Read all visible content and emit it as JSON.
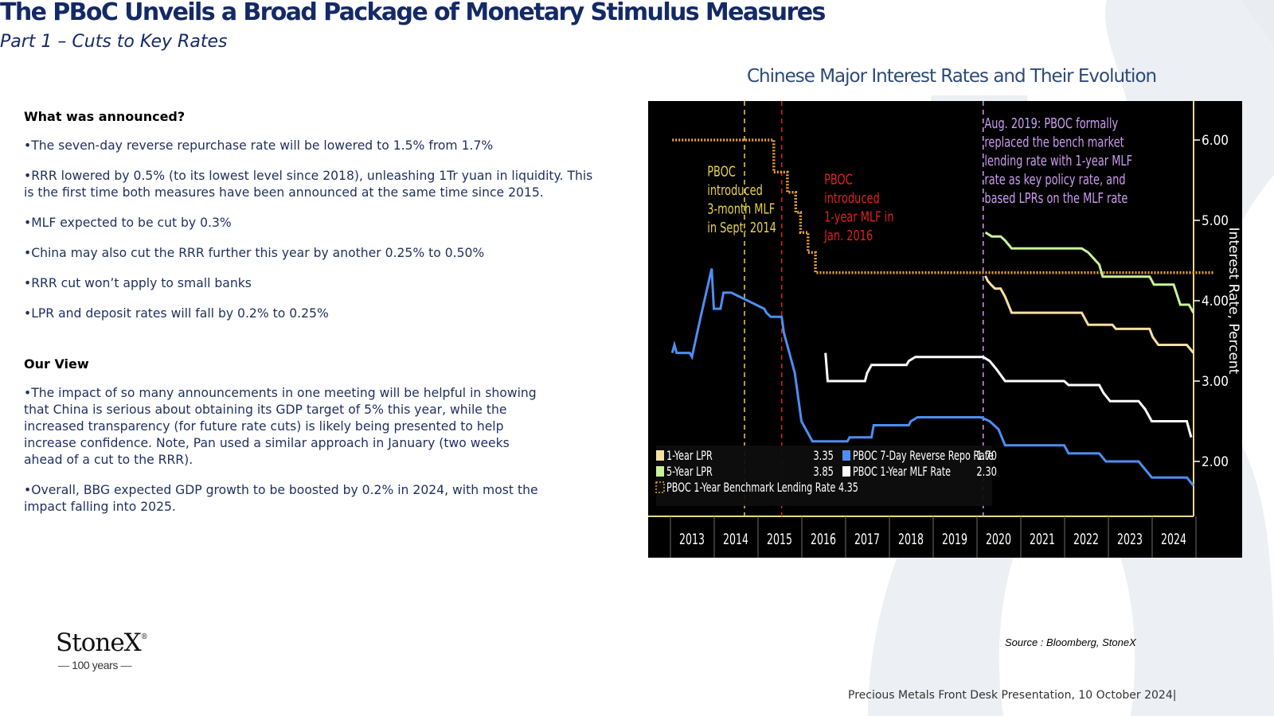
{
  "header": {
    "title": "The PBoC Unveils a Broad Package of Monetary Stimulus Measures",
    "subtitle": "Part 1 – Cuts to Key Rates"
  },
  "left": {
    "section1_heading": "What was announced?",
    "bullets1": [
      "•The seven-day reverse repurchase rate will be lowered to 1.5% from 1.7%",
      "•RRR lowered by 0.5% (to its lowest level since 2018), unleashing 1Tr yuan in liquidity. This is the first time both measures have been announced at the same time since 2015.",
      "•MLF expected to be cut by 0.3%",
      "•China may also cut the RRR further this year by another 0.25% to 0.50%",
      "•RRR cut won’t apply to small banks",
      "•LPR and deposit rates will fall by 0.2% to 0.25%"
    ],
    "section2_heading": "Our View",
    "bullets2": [
      "•The impact of so many announcements in one meeting will be helpful in showing that China is serious about obtaining its GDP target of 5% this year, while the increased transparency (for future rate cuts) is likely being presented to help increase confidence. Note, Pan used a similar approach in January (two weeks ahead of a cut to the RRR).",
      "•Overall, BBG expected GDP growth to be boosted by 0.2% in 2024, with most the impact falling into 2025."
    ]
  },
  "chart_title": "Chinese Major Interest Rates and Their Evolution",
  "source": "Source : Bloomberg, StoneX",
  "footer": "Precious Metals Front Desk Presentation, 10 October 2024|",
  "logo": {
    "name": "StoneX",
    "mark": "®",
    "years": "100 years",
    "dash": "—"
  },
  "colors": {
    "brand_navy": "#142a66",
    "chart_bg": "#000000",
    "lpr1": "#f6dfa3",
    "lpr5": "#c9f29a",
    "repo": "#4d8ef2",
    "mlf": "#ffffff",
    "bench": "#e8a33a",
    "annot_yellow": "#e8d14a",
    "annot_red": "#e02020",
    "annot_purple": "#cc9cf0"
  },
  "chart_data": {
    "type": "line",
    "title": "Chinese Major Interest Rates and Their Evolution",
    "ylabel": "Interest Rate, Percent",
    "ylim": [
      1.3,
      6.5
    ],
    "xlim": [
      2012.55,
      2024.9
    ],
    "x_ticks": [
      "2013",
      "2014",
      "2015",
      "2016",
      "2017",
      "2018",
      "2019",
      "2020",
      "2021",
      "2022",
      "2023",
      "2024"
    ],
    "y_ticks": [
      "2.00",
      "3.00",
      "4.00",
      "5.00",
      "6.00"
    ],
    "y_tick_values": [
      2,
      3,
      4,
      5,
      6
    ],
    "series": [
      {
        "name": "1-Year LPR",
        "key": "lpr1",
        "last": "3.35",
        "points": [
          [
            2019.7,
            4.31
          ],
          [
            2019.75,
            4.25
          ],
          [
            2019.83,
            4.2
          ],
          [
            2019.92,
            4.15
          ],
          [
            2020.05,
            4.15
          ],
          [
            2020.15,
            4.05
          ],
          [
            2020.3,
            3.85
          ],
          [
            2021.9,
            3.85
          ],
          [
            2021.95,
            3.8
          ],
          [
            2022.05,
            3.7
          ],
          [
            2022.6,
            3.7
          ],
          [
            2022.68,
            3.65
          ],
          [
            2023.45,
            3.65
          ],
          [
            2023.52,
            3.55
          ],
          [
            2023.65,
            3.45
          ],
          [
            2024.3,
            3.45
          ],
          [
            2024.45,
            3.35
          ]
        ]
      },
      {
        "name": "5-Year LPR",
        "key": "lpr5",
        "last": "3.85",
        "points": [
          [
            2019.7,
            4.85
          ],
          [
            2019.85,
            4.8
          ],
          [
            2020.05,
            4.8
          ],
          [
            2020.15,
            4.75
          ],
          [
            2020.3,
            4.65
          ],
          [
            2021.9,
            4.65
          ],
          [
            2022.05,
            4.6
          ],
          [
            2022.3,
            4.45
          ],
          [
            2022.38,
            4.3
          ],
          [
            2023.45,
            4.3
          ],
          [
            2023.55,
            4.2
          ],
          [
            2024.0,
            4.2
          ],
          [
            2024.15,
            3.95
          ],
          [
            2024.35,
            3.95
          ],
          [
            2024.45,
            3.85
          ]
        ]
      },
      {
        "name": "PBOC 1-Year Benchmark Lending Rate",
        "key": "bench",
        "last": "4.35",
        "points": [
          [
            2012.55,
            6.0
          ],
          [
            2014.87,
            6.0
          ],
          [
            2014.87,
            5.6
          ],
          [
            2015.18,
            5.6
          ],
          [
            2015.18,
            5.35
          ],
          [
            2015.37,
            5.35
          ],
          [
            2015.37,
            5.1
          ],
          [
            2015.48,
            5.1
          ],
          [
            2015.48,
            4.85
          ],
          [
            2015.65,
            4.85
          ],
          [
            2015.65,
            4.6
          ],
          [
            2015.82,
            4.6
          ],
          [
            2015.82,
            4.35
          ],
          [
            2024.9,
            4.35
          ]
        ]
      },
      {
        "name": "PBOC 7-Day Reverse Repo Rate",
        "key": "repo",
        "last": "1.70",
        "points": [
          [
            2012.55,
            3.35
          ],
          [
            2012.6,
            3.45
          ],
          [
            2012.65,
            3.35
          ],
          [
            2012.95,
            3.35
          ],
          [
            2013.0,
            3.3
          ],
          [
            2013.2,
            3.8
          ],
          [
            2013.45,
            4.4
          ],
          [
            2013.5,
            3.9
          ],
          [
            2013.65,
            3.9
          ],
          [
            2013.72,
            4.1
          ],
          [
            2013.9,
            4.1
          ],
          [
            2014.65,
            3.9
          ],
          [
            2014.7,
            3.85
          ],
          [
            2014.8,
            3.8
          ],
          [
            2015.05,
            3.8
          ],
          [
            2015.1,
            3.6
          ],
          [
            2015.2,
            3.4
          ],
          [
            2015.35,
            3.1
          ],
          [
            2015.5,
            2.5
          ],
          [
            2015.65,
            2.35
          ],
          [
            2015.75,
            2.25
          ],
          [
            2016.55,
            2.25
          ],
          [
            2016.6,
            2.3
          ],
          [
            2017.1,
            2.3
          ],
          [
            2017.15,
            2.45
          ],
          [
            2017.95,
            2.45
          ],
          [
            2018.0,
            2.5
          ],
          [
            2018.15,
            2.55
          ],
          [
            2019.6,
            2.55
          ],
          [
            2019.8,
            2.5
          ],
          [
            2020.0,
            2.4
          ],
          [
            2020.15,
            2.2
          ],
          [
            2021.5,
            2.2
          ],
          [
            2021.6,
            2.1
          ],
          [
            2022.3,
            2.1
          ],
          [
            2022.45,
            2.0
          ],
          [
            2023.2,
            2.0
          ],
          [
            2023.35,
            1.9
          ],
          [
            2023.5,
            1.8
          ],
          [
            2024.3,
            1.8
          ],
          [
            2024.45,
            1.7
          ]
        ]
      },
      {
        "name": "PBOC 1-Year MLF Rate",
        "key": "mlf",
        "last": "2.30",
        "points": [
          [
            2016.05,
            3.35
          ],
          [
            2016.1,
            3.0
          ],
          [
            2016.95,
            3.0
          ],
          [
            2017.0,
            3.1
          ],
          [
            2017.1,
            3.2
          ],
          [
            2017.9,
            3.2
          ],
          [
            2017.95,
            3.25
          ],
          [
            2018.1,
            3.3
          ],
          [
            2019.65,
            3.3
          ],
          [
            2019.8,
            3.25
          ],
          [
            2019.95,
            3.15
          ],
          [
            2020.15,
            3.0
          ],
          [
            2021.5,
            3.0
          ],
          [
            2021.6,
            2.95
          ],
          [
            2022.3,
            2.95
          ],
          [
            2022.4,
            2.85
          ],
          [
            2022.55,
            2.75
          ],
          [
            2023.2,
            2.75
          ],
          [
            2023.35,
            2.65
          ],
          [
            2023.5,
            2.5
          ],
          [
            2024.3,
            2.5
          ],
          [
            2024.4,
            2.3
          ]
        ]
      }
    ],
    "vlines": [
      {
        "x": 2014.2,
        "key": "annot_yellow"
      },
      {
        "x": 2015.05,
        "key": "annot_red"
      },
      {
        "x": 2019.65,
        "key": "annot_purple"
      }
    ],
    "annotations": [
      {
        "key": "annot_yellow",
        "x": 2013.35,
        "y": 5.55,
        "lines": [
          "PBOC",
          "introduced",
          "3-month MLF",
          "in Sept. 2014"
        ]
      },
      {
        "key": "annot_red",
        "x": 2016.02,
        "y": 5.45,
        "lines": [
          "PBOC",
          "introduced",
          "1-year MLF in",
          "Jan. 2016"
        ]
      },
      {
        "key": "annot_purple",
        "x": 2019.68,
        "y": 6.15,
        "lines": [
          "Aug. 2019: PBOC formally",
          "replaced the bench market",
          "lending rate with 1-year MLF",
          "rate as key policy rate, and",
          "based LPRs on the MLF rate"
        ]
      }
    ],
    "legend_placement": "bottom-left",
    "grid": false
  }
}
